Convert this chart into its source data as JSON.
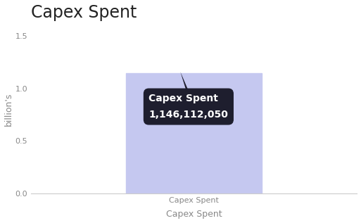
{
  "title": "Capex Spent",
  "bar_value": 1.14611205,
  "bar_label": "Capex Spent",
  "bar_color": "#c5c8f0",
  "bar_edge_color": "#c5c8f0",
  "xlabel": "Capex Spent",
  "ylabel": "billion's",
  "ylim": [
    0,
    1.6
  ],
  "yticks": [
    0,
    0.5,
    1.0,
    1.5
  ],
  "background_color": "#ffffff",
  "tooltip_bg": "#1e1e2e",
  "tooltip_title": "Capex Spent",
  "tooltip_value": "1,146,112,050",
  "tooltip_title_fontsize": 10,
  "tooltip_value_fontsize": 10,
  "title_fontsize": 17,
  "axis_label_fontsize": 9,
  "tick_fontsize": 8,
  "axis_color": "#cccccc",
  "bar_width": 0.5
}
